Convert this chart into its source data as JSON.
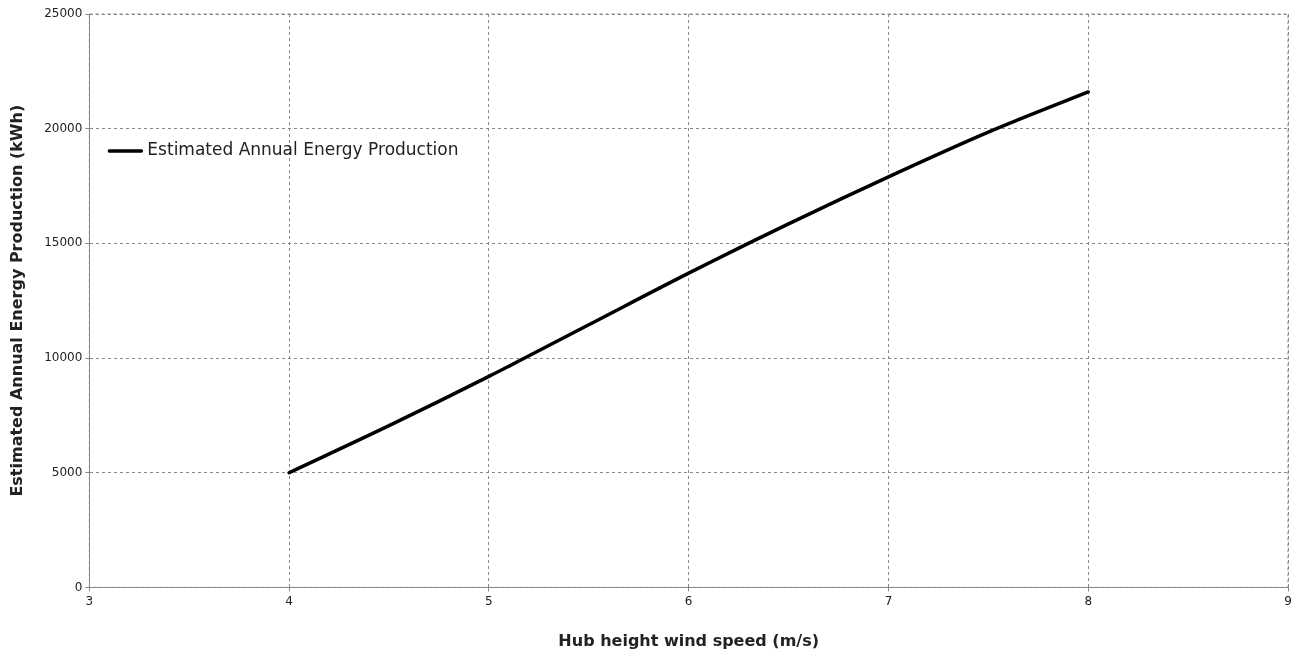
{
  "chart_data": {
    "type": "line",
    "xlabel": "Hub height wind speed (m/s)",
    "ylabel": "Estimated Annual Energy Production (kWh)",
    "x": [
      4,
      4.5,
      5,
      5.5,
      6,
      6.5,
      7,
      7.5,
      8
    ],
    "series": [
      {
        "name": "Estimated Annual Energy Production",
        "color": "#000000",
        "values": [
          5000,
          7050,
          9200,
          11450,
          13700,
          15850,
          17900,
          19850,
          21600
        ]
      }
    ],
    "xlim": [
      3,
      9
    ],
    "xticks": [
      3,
      4,
      5,
      6,
      7,
      8,
      9
    ],
    "ylim": [
      0,
      25000
    ],
    "yticks": [
      0,
      5000,
      10000,
      15000,
      20000,
      25000
    ],
    "grid": true,
    "legend": "top left",
    "marker": "none",
    "line_style": "solid"
  }
}
